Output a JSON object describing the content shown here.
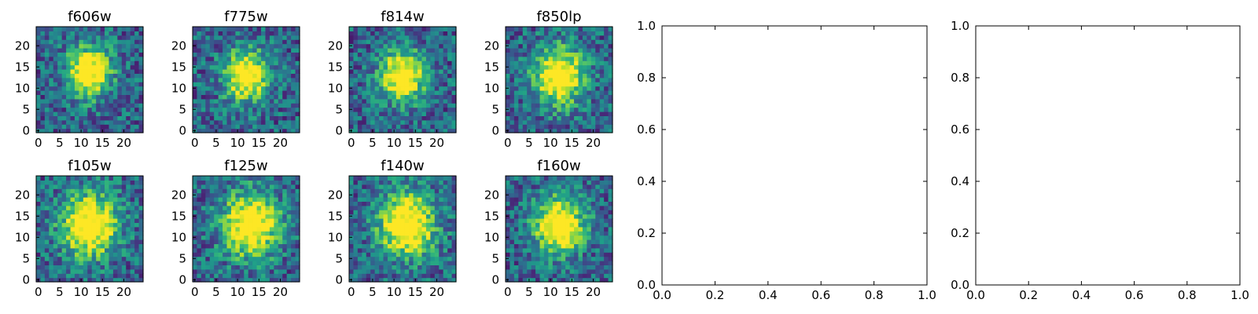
{
  "chart_data": [
    {
      "type": "heatmap",
      "title": "f606w",
      "xticks": [
        "0",
        "5",
        "10",
        "15",
        "20"
      ],
      "yticks": [
        "0",
        "5",
        "10",
        "15",
        "20"
      ],
      "grid_size": [
        25,
        25
      ],
      "peak": [
        12,
        14
      ],
      "spread": 3.5,
      "colormap": "viridis"
    },
    {
      "type": "heatmap",
      "title": "f775w",
      "xticks": [
        "0",
        "5",
        "10",
        "15",
        "20"
      ],
      "yticks": [
        "0",
        "5",
        "10",
        "15",
        "20"
      ],
      "grid_size": [
        25,
        25
      ],
      "peak": [
        12,
        13
      ],
      "spread": 3.5,
      "colormap": "viridis"
    },
    {
      "type": "heatmap",
      "title": "f814w",
      "xticks": [
        "0",
        "5",
        "10",
        "15",
        "20"
      ],
      "yticks": [
        "0",
        "5",
        "10",
        "15",
        "20"
      ],
      "grid_size": [
        25,
        25
      ],
      "peak": [
        12,
        13
      ],
      "spread": 3.5,
      "colormap": "viridis"
    },
    {
      "type": "heatmap",
      "title": "f850lp",
      "xticks": [
        "0",
        "5",
        "10",
        "15",
        "20"
      ],
      "yticks": [
        "0",
        "5",
        "10",
        "15",
        "20"
      ],
      "grid_size": [
        25,
        25
      ],
      "peak": [
        12,
        13
      ],
      "spread": 4,
      "colormap": "viridis"
    },
    {
      "type": "heatmap",
      "title": "f105w",
      "xticks": [
        "0",
        "5",
        "10",
        "15",
        "20"
      ],
      "yticks": [
        "0",
        "5",
        "10",
        "15",
        "20"
      ],
      "grid_size": [
        25,
        25
      ],
      "peak": [
        12,
        13
      ],
      "spread": 4.5,
      "colormap": "viridis"
    },
    {
      "type": "heatmap",
      "title": "f125w",
      "xticks": [
        "0",
        "5",
        "10",
        "15",
        "20"
      ],
      "yticks": [
        "0",
        "5",
        "10",
        "15",
        "20"
      ],
      "grid_size": [
        25,
        25
      ],
      "peak": [
        13,
        13
      ],
      "spread": 4.5,
      "colormap": "viridis"
    },
    {
      "type": "heatmap",
      "title": "f140w",
      "xticks": [
        "0",
        "5",
        "10",
        "15",
        "20"
      ],
      "yticks": [
        "0",
        "5",
        "10",
        "15",
        "20"
      ],
      "grid_size": [
        25,
        25
      ],
      "peak": [
        13,
        13
      ],
      "spread": 4.5,
      "colormap": "viridis"
    },
    {
      "type": "heatmap",
      "title": "f160w",
      "xticks": [
        "0",
        "5",
        "10",
        "15",
        "20"
      ],
      "yticks": [
        "0",
        "5",
        "10",
        "15",
        "20"
      ],
      "grid_size": [
        25,
        25
      ],
      "peak": [
        12,
        13
      ],
      "spread": 4,
      "colormap": "viridis"
    },
    {
      "type": "empty",
      "xlim": [
        0,
        1
      ],
      "ylim": [
        0,
        1
      ],
      "xticks": [
        "0.0",
        "0.2",
        "0.4",
        "0.6",
        "0.8",
        "1.0"
      ],
      "yticks": [
        "0.0",
        "0.2",
        "0.4",
        "0.6",
        "0.8",
        "1.0"
      ]
    },
    {
      "type": "empty",
      "xlim": [
        0,
        1
      ],
      "ylim": [
        0,
        1
      ],
      "xticks": [
        "0.0",
        "0.2",
        "0.4",
        "0.6",
        "0.8",
        "1.0"
      ],
      "yticks": [
        "0.0",
        "0.2",
        "0.4",
        "0.6",
        "0.8",
        "1.0"
      ]
    }
  ]
}
